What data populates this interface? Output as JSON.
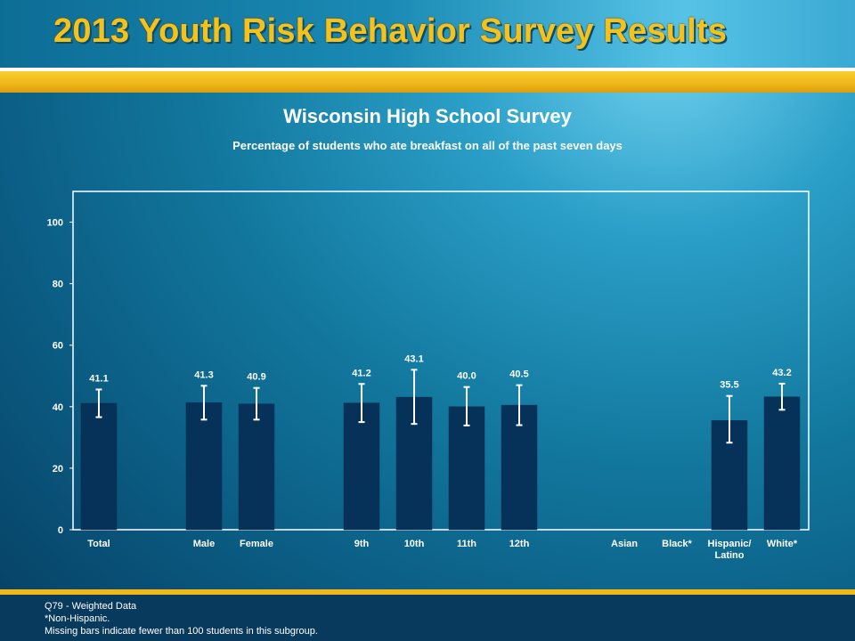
{
  "header": {
    "title": "2013 Youth Risk Behavior Survey Results"
  },
  "chart_data": {
    "type": "bar",
    "title": "Wisconsin High School Survey",
    "subtitle": "Percentage of students who ate breakfast on all of the past seven days",
    "xlabel": "",
    "ylabel": "",
    "ylim": [
      0,
      110
    ],
    "yticks": [
      0,
      20,
      40,
      60,
      80,
      100
    ],
    "grid": false,
    "categories": [
      "Total",
      "Male",
      "Female",
      "9th",
      "10th",
      "11th",
      "12th",
      "Asian",
      "Black*",
      "Hispanic/\nLatino",
      "White*"
    ],
    "values": [
      41.1,
      41.3,
      40.9,
      41.2,
      43.1,
      40.0,
      40.5,
      null,
      null,
      35.5,
      43.2
    ],
    "value_labels": [
      "41.1",
      "41.3",
      "40.9",
      "41.2",
      "43.1",
      "40.0",
      "40.5",
      "",
      "",
      "35.5",
      "43.2"
    ],
    "error_low": [
      36.6,
      35.8,
      35.8,
      35.0,
      34.4,
      33.9,
      34.0,
      null,
      null,
      28.3,
      39.0
    ],
    "error_high": [
      45.6,
      46.8,
      46.1,
      47.4,
      52.0,
      46.4,
      47.0,
      null,
      null,
      43.5,
      47.5
    ],
    "bar_color": "#06325a",
    "error_bar_color": "#ffffff"
  },
  "footer": {
    "line1": "Q79 - Weighted Data",
    "line2": "*Non-Hispanic.",
    "line3": "Missing bars indicate fewer than 100 students in this subgroup."
  }
}
